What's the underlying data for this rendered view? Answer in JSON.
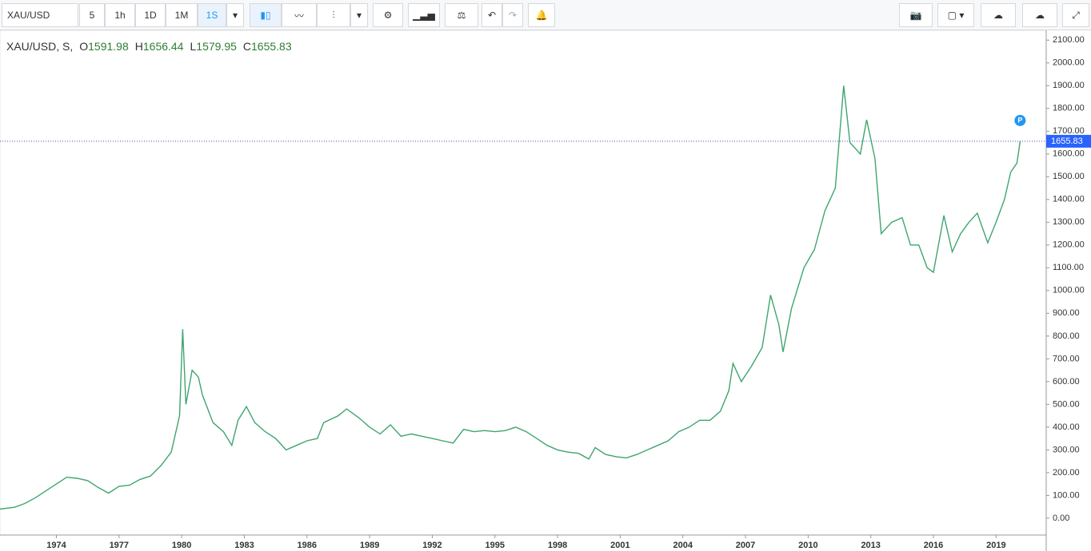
{
  "toolbar": {
    "symbol": "XAU/USD",
    "intervals": [
      "5",
      "1h",
      "1D",
      "1M",
      "1S"
    ]
  },
  "legend": {
    "title": "XAU/USD, S,",
    "items": [
      {
        "label": "O",
        "value": 1591.98
      },
      {
        "label": "H",
        "value": 1656.44
      },
      {
        "label": "L",
        "value": 1579.95
      },
      {
        "label": "C",
        "value": 1655.83
      }
    ]
  },
  "chart_data": {
    "type": "line",
    "color": "#3fa56e",
    "last_price": 1655.83,
    "marker_label": "P",
    "x": [
      1971.3,
      1972,
      1972.5,
      1973,
      1973.5,
      1974,
      1974.5,
      1975,
      1975.5,
      1976,
      1976.5,
      1977,
      1977.5,
      1978,
      1978.5,
      1979,
      1979.5,
      1979.9,
      1980.05,
      1980.2,
      1980.5,
      1980.8,
      1981,
      1981.5,
      1982,
      1982.4,
      1982.7,
      1983.1,
      1983.5,
      1984,
      1984.5,
      1985,
      1985.5,
      1986,
      1986.5,
      1986.8,
      1987.5,
      1987.9,
      1988.5,
      1989,
      1989.5,
      1990,
      1990.5,
      1991,
      1991.5,
      1992,
      1992.5,
      1993,
      1993.5,
      1994,
      1994.5,
      1995,
      1995.5,
      1996,
      1996.5,
      1997,
      1997.5,
      1998,
      1998.5,
      1999,
      1999.5,
      1999.8,
      2000.3,
      2000.8,
      2001.3,
      2001.8,
      2002.3,
      2002.8,
      2003.3,
      2003.8,
      2004.3,
      2004.8,
      2005.3,
      2005.8,
      2006.2,
      2006.4,
      2006.8,
      2007.3,
      2007.8,
      2008.2,
      2008.6,
      2008.8,
      2009.2,
      2009.8,
      2010.3,
      2010.8,
      2011.3,
      2011.7,
      2012,
      2012.5,
      2012.8,
      2013.2,
      2013.5,
      2014,
      2014.5,
      2014.9,
      2015.3,
      2015.7,
      2016,
      2016.5,
      2016.9,
      2017.3,
      2017.7,
      2018.1,
      2018.6,
      2019,
      2019.4,
      2019.7,
      2020,
      2020.15
    ],
    "values": [
      40,
      48,
      65,
      90,
      120,
      150,
      180,
      175,
      165,
      135,
      110,
      140,
      145,
      170,
      185,
      230,
      290,
      450,
      830,
      500,
      650,
      620,
      540,
      420,
      380,
      320,
      430,
      490,
      420,
      380,
      350,
      300,
      320,
      340,
      350,
      420,
      450,
      480,
      440,
      400,
      370,
      410,
      360,
      370,
      360,
      350,
      340,
      330,
      390,
      380,
      385,
      380,
      385,
      400,
      380,
      350,
      320,
      300,
      290,
      285,
      260,
      310,
      280,
      270,
      265,
      280,
      300,
      320,
      340,
      380,
      400,
      430,
      430,
      470,
      560,
      680,
      600,
      670,
      750,
      980,
      850,
      730,
      920,
      1100,
      1180,
      1350,
      1450,
      1900,
      1650,
      1600,
      1750,
      1580,
      1250,
      1300,
      1320,
      1200,
      1200,
      1100,
      1080,
      1330,
      1170,
      1250,
      1300,
      1340,
      1210,
      1300,
      1400,
      1520,
      1560,
      1655.83
    ],
    "xlim": [
      1971.3,
      2021.4
    ],
    "ylim": [
      -74,
      2143
    ],
    "xticks": [
      1974,
      1977,
      1980,
      1983,
      1986,
      1989,
      1992,
      1995,
      1998,
      2001,
      2004,
      2007,
      2010,
      2013,
      2016,
      2019
    ],
    "yticks": [
      {
        "value": 0,
        "label": "0.00"
      },
      {
        "value": 100,
        "label": "100.00"
      },
      {
        "value": 200,
        "label": "200.00"
      },
      {
        "value": 300,
        "label": "300.00"
      },
      {
        "value": 400,
        "label": "400.00"
      },
      {
        "value": 500,
        "label": "500.00"
      },
      {
        "value": 600,
        "label": "600.00"
      },
      {
        "value": 700,
        "label": "700.00"
      },
      {
        "value": 800,
        "label": "800.00"
      },
      {
        "value": 900,
        "label": "900.00"
      },
      {
        "value": 1000,
        "label": "1000.00"
      },
      {
        "value": 1100,
        "label": "1100.00"
      },
      {
        "value": 1200,
        "label": "1200.00"
      },
      {
        "value": 1300,
        "label": "1300.00"
      },
      {
        "value": 1400,
        "label": "1400.00"
      },
      {
        "value": 1500,
        "label": "1500.00"
      },
      {
        "value": 1600,
        "label": "1600.00"
      },
      {
        "value": 1700,
        "label": "1700.00"
      },
      {
        "value": 1800,
        "label": "1800.00"
      },
      {
        "value": 1900,
        "label": "1900.00"
      },
      {
        "value": 2000,
        "label": "2000.00"
      },
      {
        "value": 2100,
        "label": "2100.00"
      }
    ]
  }
}
